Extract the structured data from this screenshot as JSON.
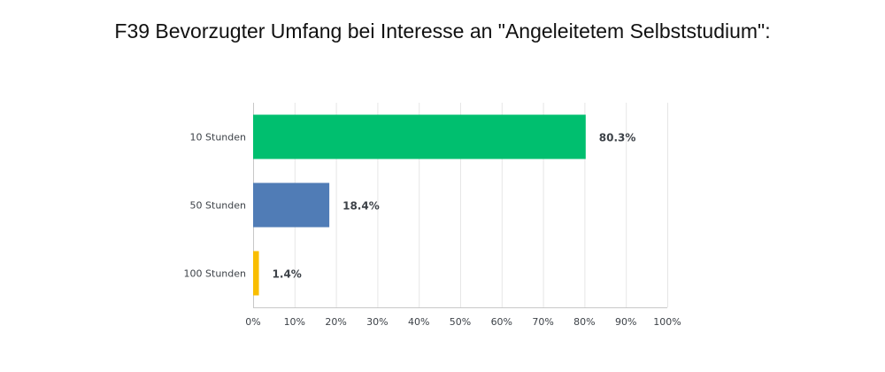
{
  "chart_data": {
    "type": "bar",
    "orientation": "horizontal",
    "title": "F39 Bevorzugter Umfang bei Interesse an \"Angeleitetem Selbststudium\":",
    "categories": [
      "10 Stunden",
      "50 Stunden",
      "100 Stunden"
    ],
    "values": [
      80.3,
      18.4,
      1.4
    ],
    "value_labels": [
      "80.3%",
      "18.4%",
      "1.4%"
    ],
    "colors": [
      "#00bf6f",
      "#507cb6",
      "#f9be00"
    ],
    "xlim": [
      0,
      100
    ],
    "x_ticks": [
      0,
      10,
      20,
      30,
      40,
      50,
      60,
      70,
      80,
      90,
      100
    ],
    "x_tick_labels": [
      "0%",
      "10%",
      "20%",
      "30%",
      "40%",
      "50%",
      "60%",
      "70%",
      "80%",
      "90%",
      "100%"
    ],
    "xlabel": "",
    "ylabel": "",
    "grid": true,
    "legend": false
  }
}
